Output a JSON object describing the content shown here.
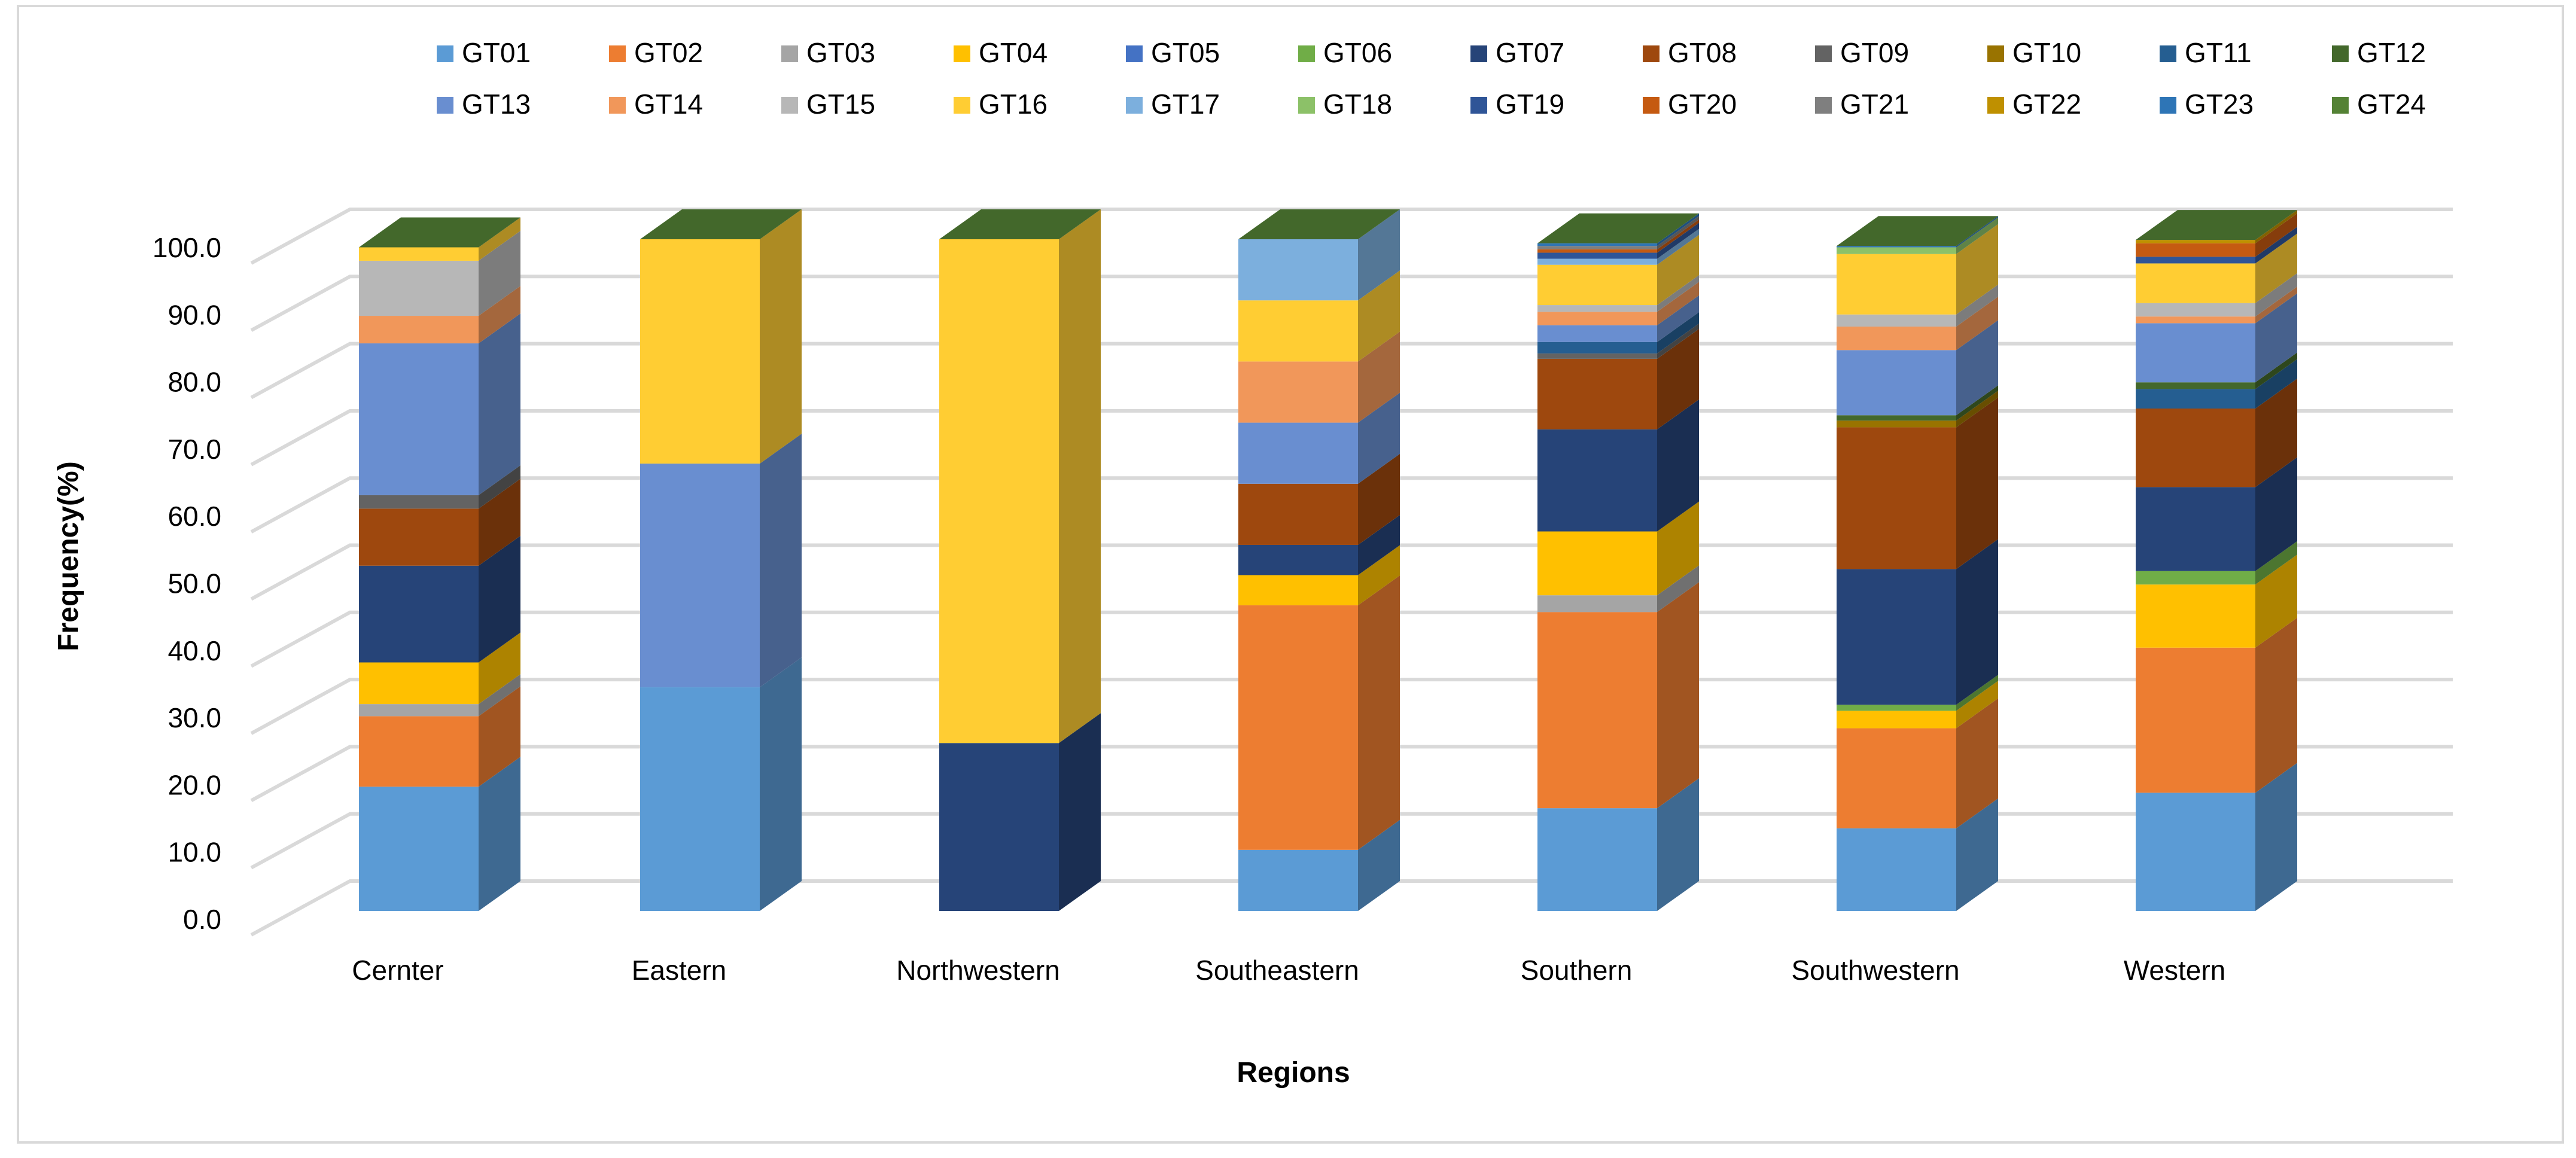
{
  "chart_data": {
    "type": "bar",
    "stacked": true,
    "three_d": true,
    "title": "",
    "xlabel": "Regions",
    "ylabel": "Frequency(%)",
    "ylim": [
      0,
      100
    ],
    "yticks": [
      "0.0",
      "10.0",
      "20.0",
      "30.0",
      "40.0",
      "50.0",
      "60.0",
      "70.0",
      "80.0",
      "90.0",
      "100.0"
    ],
    "grid": true,
    "legend_position": "top",
    "categories": [
      "Cernter",
      "Eastern",
      "Northwestern",
      "Southeastern",
      "Southern",
      "Southwestern",
      "Western"
    ],
    "series": [
      {
        "name": "GT01",
        "color": "#5B9BD5",
        "values": [
          18.5,
          33.3,
          0,
          9.1,
          15.3,
          12.3,
          17.6
        ]
      },
      {
        "name": "GT02",
        "color": "#ED7D31",
        "values": [
          10.5,
          0,
          0,
          36.4,
          29.2,
          14.9,
          21.6
        ]
      },
      {
        "name": "GT03",
        "color": "#A5A5A5",
        "values": [
          1.8,
          0,
          0,
          0,
          2.5,
          0,
          0
        ]
      },
      {
        "name": "GT04",
        "color": "#FFC000",
        "values": [
          6.2,
          0,
          0,
          4.5,
          9.5,
          2.6,
          9.4
        ]
      },
      {
        "name": "GT05",
        "color": "#4472C4",
        "values": [
          0,
          0,
          0,
          0,
          0,
          0,
          0
        ]
      },
      {
        "name": "GT06",
        "color": "#70AD47",
        "values": [
          0,
          0,
          0,
          0,
          0,
          0.9,
          2.0
        ]
      },
      {
        "name": "GT07",
        "color": "#264478",
        "values": [
          14.4,
          0,
          25.0,
          4.5,
          15.2,
          20.2,
          12.5
        ]
      },
      {
        "name": "GT08",
        "color": "#9E480E",
        "values": [
          8.5,
          0,
          0,
          9.1,
          10.5,
          21.1,
          11.7
        ]
      },
      {
        "name": "GT09",
        "color": "#636363",
        "values": [
          2.0,
          0,
          0,
          0,
          0.8,
          0,
          0
        ]
      },
      {
        "name": "GT10",
        "color": "#997300",
        "values": [
          0,
          0,
          0,
          0,
          0,
          1.0,
          0
        ]
      },
      {
        "name": "GT11",
        "color": "#255E91",
        "values": [
          0,
          0,
          0,
          0,
          1.7,
          0,
          2.9
        ]
      },
      {
        "name": "GT12",
        "color": "#43682B",
        "values": [
          0,
          0,
          0,
          0,
          0,
          0.8,
          1.0
        ]
      },
      {
        "name": "GT13",
        "color": "#698ED0",
        "values": [
          22.6,
          33.3,
          0,
          9.1,
          2.5,
          9.7,
          8.8
        ]
      },
      {
        "name": "GT14",
        "color": "#F1975A",
        "values": [
          4.1,
          0,
          0,
          9.1,
          2.0,
          3.5,
          1.0
        ]
      },
      {
        "name": "GT15",
        "color": "#B7B7B7",
        "values": [
          8.2,
          0,
          0,
          0,
          1.0,
          1.8,
          2.0
        ]
      },
      {
        "name": "GT16",
        "color": "#FFCD33",
        "values": [
          2.0,
          33.4,
          75.0,
          9.1,
          6.0,
          9.0,
          5.9
        ]
      },
      {
        "name": "GT17",
        "color": "#7CAFDD",
        "values": [
          0,
          0,
          0,
          9.1,
          0.9,
          0,
          0
        ]
      },
      {
        "name": "GT18",
        "color": "#8CC168",
        "values": [
          0,
          0,
          0,
          0,
          0,
          1.0,
          0
        ]
      },
      {
        "name": "GT19",
        "color": "#2F5597",
        "values": [
          0,
          0,
          0,
          0,
          0.9,
          0,
          1.0
        ]
      },
      {
        "name": "GT20",
        "color": "#C55A11",
        "values": [
          0,
          0,
          0,
          0,
          0.5,
          0,
          2.0
        ]
      },
      {
        "name": "GT21",
        "color": "#7F7F7F",
        "values": [
          0,
          0,
          0,
          0,
          0.5,
          0,
          0
        ]
      },
      {
        "name": "GT22",
        "color": "#BF9000",
        "values": [
          0,
          0,
          0,
          0,
          0,
          0,
          0.5
        ]
      },
      {
        "name": "GT23",
        "color": "#2E75B6",
        "values": [
          0,
          0,
          0,
          0,
          0.4,
          0.2,
          0
        ]
      },
      {
        "name": "GT24",
        "color": "#548235",
        "values": [
          0,
          0,
          0,
          0,
          0,
          0,
          0
        ]
      }
    ],
    "top_face_color": "#43682B"
  }
}
